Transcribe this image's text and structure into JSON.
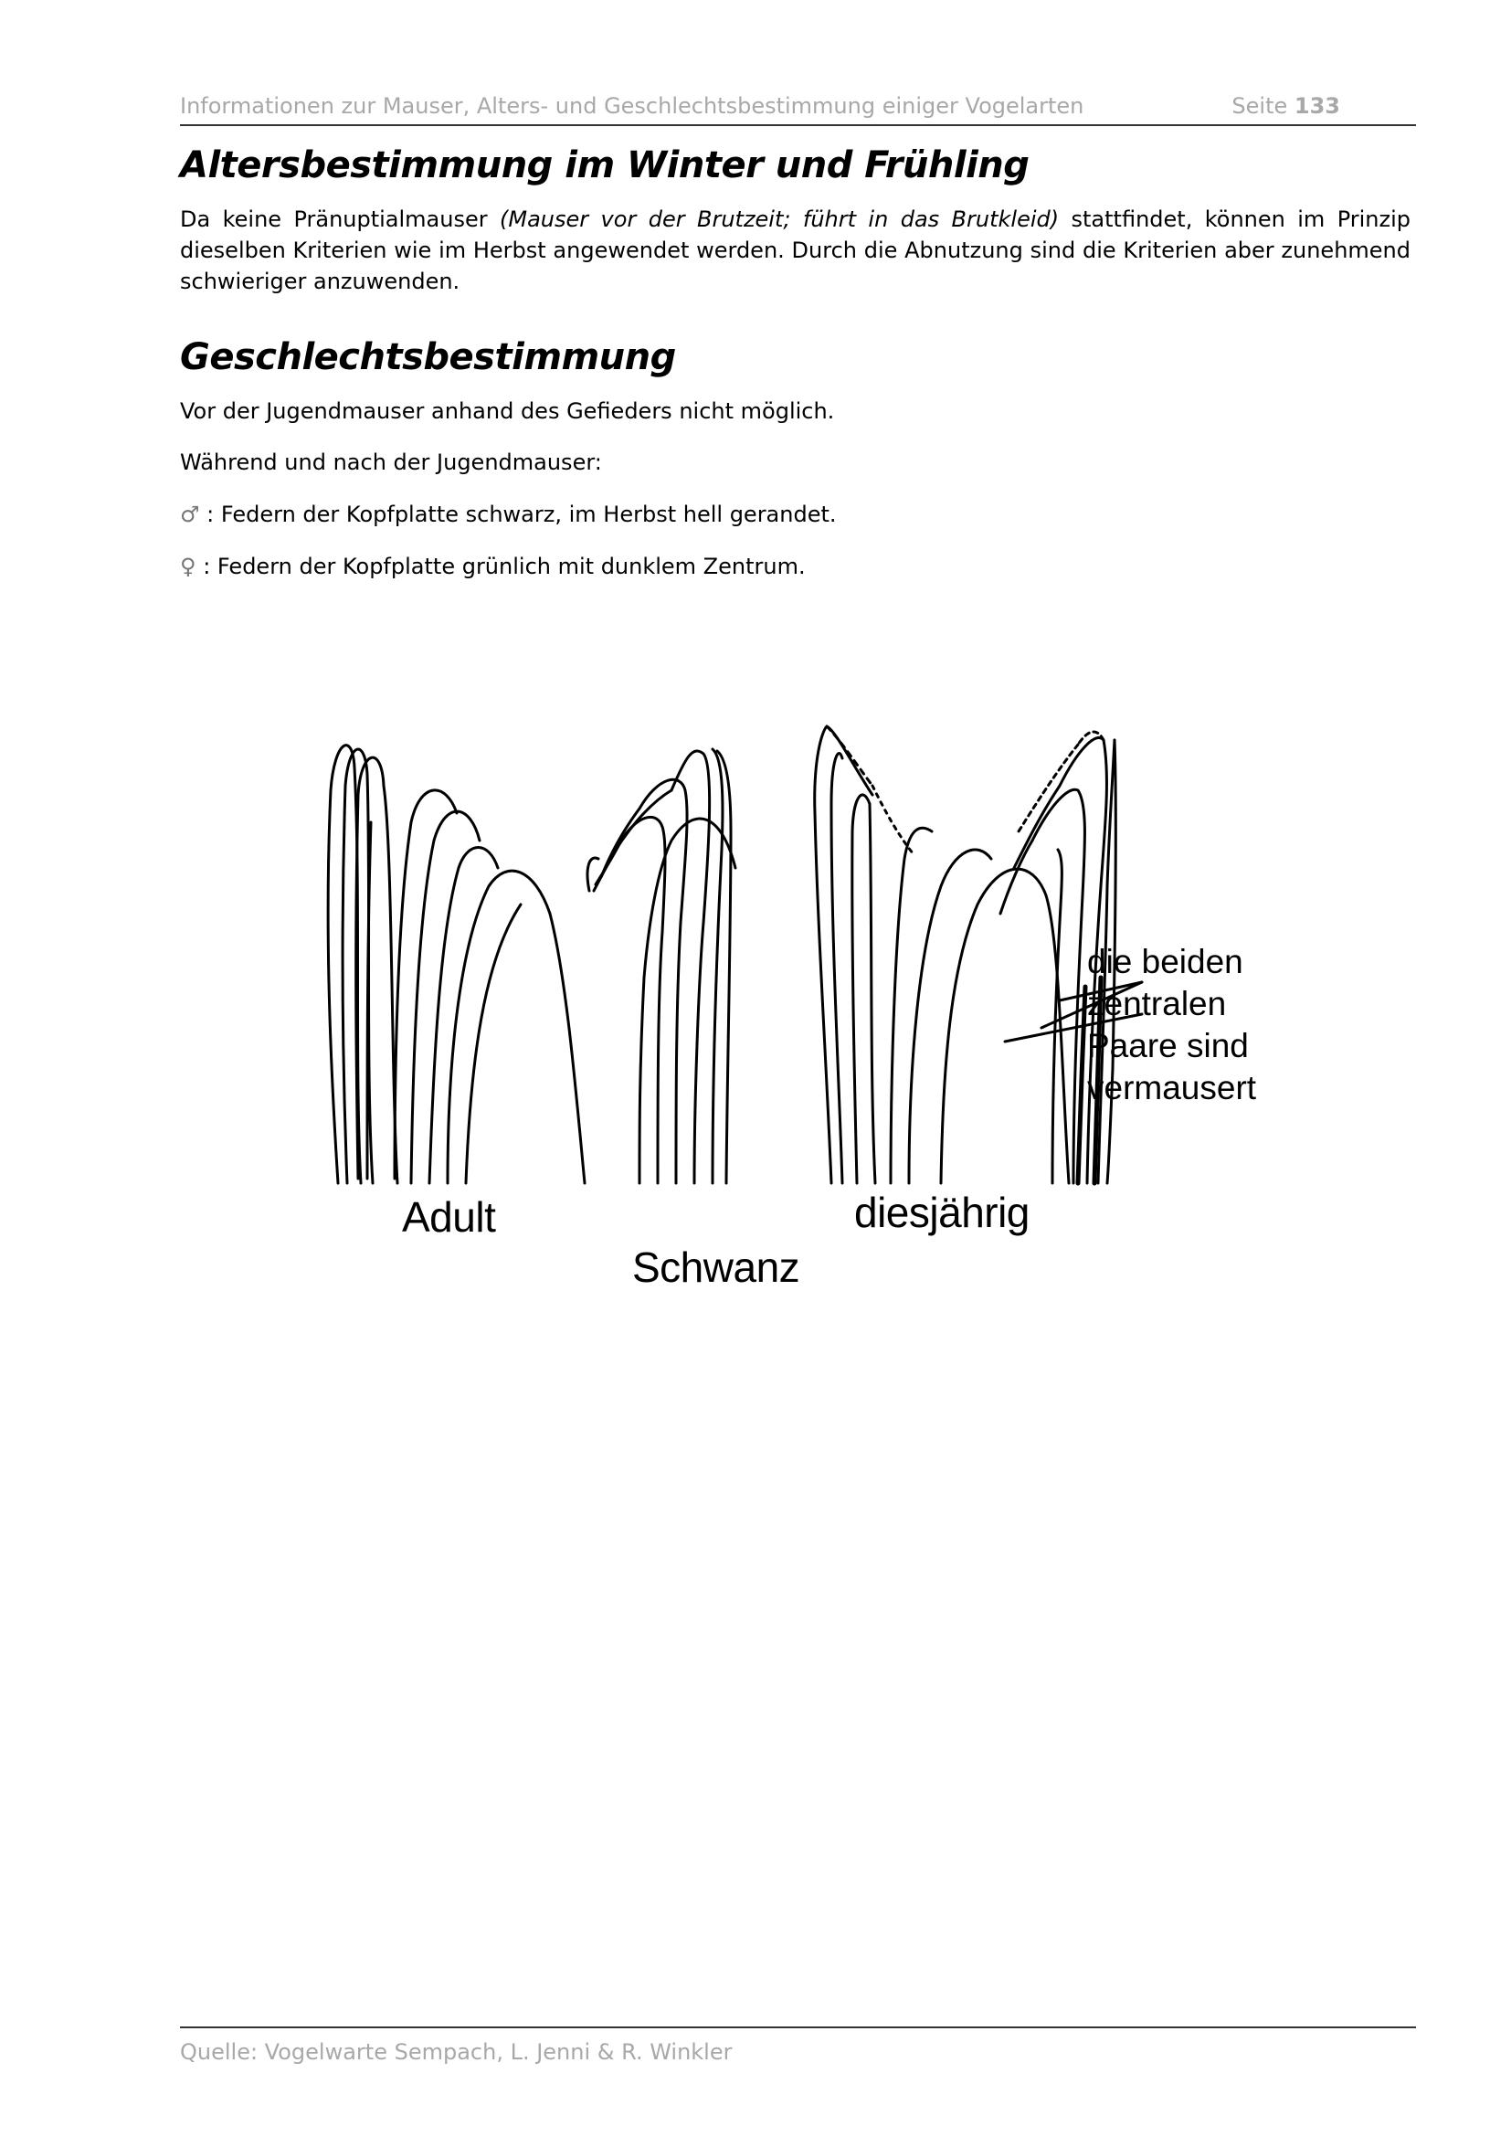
{
  "header": {
    "title": "Informationen zur Mauser, Alters- und Geschlechtsbestimmung einiger Vogelarten",
    "page_label": "Seite",
    "page_number": "133"
  },
  "section1": {
    "heading": "Altersbestimmung im Winter und Frühling",
    "text_start": "Da keine Pränuptialmauser ",
    "text_italic": "(Mauser vor der Brutzeit; führt in das Brutkleid)",
    "text_end": " stattfindet, können im Prinzip dieselben Kriterien wie im Herbst angewendet werden. Durch die Abnutzung sind die Kriterien aber zunehmend schwieriger anzuwenden."
  },
  "section2": {
    "heading": "Geschlechtsbestimmung",
    "line1": "Vor der Jugendmauser anhand des Gefieders nicht möglich.",
    "line2": "Während und nach der Jugendmauser:",
    "male_symbol": "♂",
    "male_text": ": Federn der Kopfplatte schwarz, im Herbst hell gerandet.",
    "female_symbol": "♀",
    "female_text": ": Federn der Kopfplatte grünlich mit dunklem Zentrum."
  },
  "figure": {
    "label_adult": "Adult",
    "label_juvenile": "diesjährig",
    "label_center": "Schwanz",
    "annotation": [
      "die beiden",
      "zentralen",
      "Paare sind",
      "vermausert"
    ]
  },
  "footer": {
    "source": "Quelle: Vogelwarte Sempach, L. Jenni & R. Winkler"
  }
}
